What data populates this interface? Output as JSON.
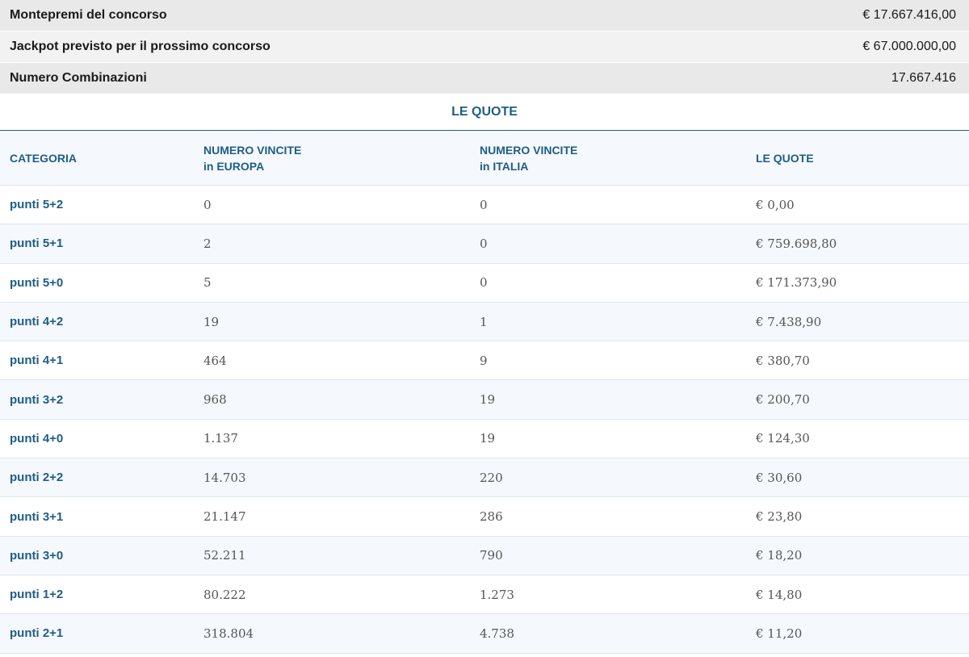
{
  "summary": [
    {
      "label": "Montepremi del concorso",
      "value": "€ 17.667.416,00"
    },
    {
      "label": "Jackpot previsto per il prossimo concorso",
      "value": "€ 67.000.000,00"
    },
    {
      "label": "Numero Combinazioni",
      "value": "17.667.416"
    }
  ],
  "section_title": "LE QUOTE",
  "table": {
    "headers": {
      "categoria": "CATEGORIA",
      "europa_line1": "NUMERO VINCITE",
      "europa_line2": "in EUROPA",
      "italia_line1": "NUMERO VINCITE",
      "italia_line2": "in ITALIA",
      "quote": "LE QUOTE"
    },
    "rows": [
      {
        "categoria": "punti 5+2",
        "europa": "0",
        "italia": "0",
        "quota": "€ 0,00"
      },
      {
        "categoria": "punti 5+1",
        "europa": "2",
        "italia": "0",
        "quota": "€ 759.698,80"
      },
      {
        "categoria": "punti 5+0",
        "europa": "5",
        "italia": "0",
        "quota": "€ 171.373,90"
      },
      {
        "categoria": "punti 4+2",
        "europa": "19",
        "italia": "1",
        "quota": "€ 7.438,90"
      },
      {
        "categoria": "punti 4+1",
        "europa": "464",
        "italia": "9",
        "quota": "€ 380,70"
      },
      {
        "categoria": "punti 3+2",
        "europa": "968",
        "italia": "19",
        "quota": "€ 200,70"
      },
      {
        "categoria": "punti 4+0",
        "europa": "1.137",
        "italia": "19",
        "quota": "€ 124,30"
      },
      {
        "categoria": "punti 2+2",
        "europa": "14.703",
        "italia": "220",
        "quota": "€ 30,60"
      },
      {
        "categoria": "punti 3+1",
        "europa": "21.147",
        "italia": "286",
        "quota": "€ 23,80"
      },
      {
        "categoria": "punti 3+0",
        "europa": "52.211",
        "italia": "790",
        "quota": "€ 18,20"
      },
      {
        "categoria": "punti 1+2",
        "europa": "80.222",
        "italia": "1.273",
        "quota": "€ 14,80"
      },
      {
        "categoria": "punti 2+1",
        "europa": "318.804",
        "italia": "4.738",
        "quota": "€ 11,20"
      }
    ]
  }
}
